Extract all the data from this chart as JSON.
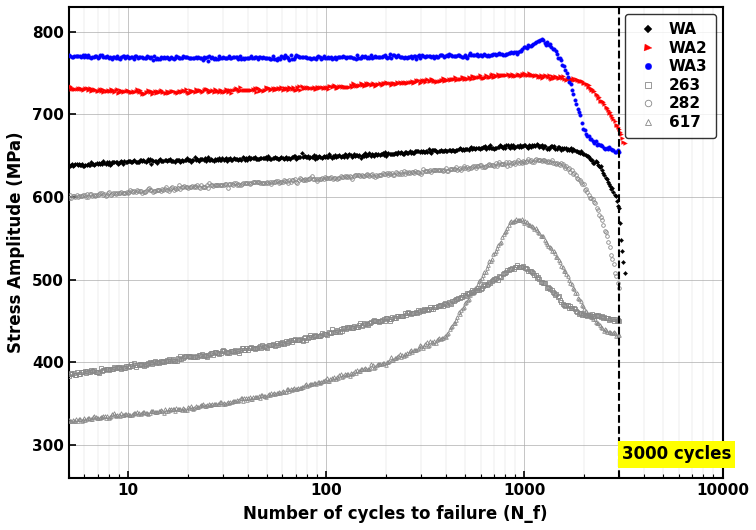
{
  "xlabel": "Number of cycles to failure (N_f)",
  "ylabel": "Stress Amplitude (MPa)",
  "xlim": [
    5,
    10000
  ],
  "ylim": [
    260,
    830
  ],
  "yticks": [
    300,
    400,
    500,
    600,
    700,
    800
  ],
  "xticks": [
    10,
    100,
    1000,
    10000
  ],
  "vline_x": 3000,
  "vline_label": "3000 cycles",
  "background_color": "#ffffff",
  "wa_color": "#000000",
  "wa2_color": "#ff0000",
  "wa3_color": "#0000ff",
  "gray_color": "#888888"
}
